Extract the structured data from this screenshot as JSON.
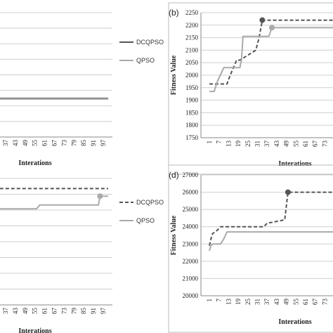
{
  "chart_data": [
    {
      "panel": "",
      "type": "line",
      "xlabel": "Interations",
      "ylabel": "",
      "x_tick_labels": [
        "37",
        "43",
        "49",
        "55",
        "61",
        "67",
        "73",
        "79",
        "85",
        "91",
        "97"
      ],
      "x_ticks": [
        37,
        43,
        49,
        55,
        61,
        67,
        73,
        79,
        85,
        91,
        97
      ],
      "y_tick_labels": [],
      "grid": "horizontal",
      "legend": {
        "placement": "right",
        "entries": [
          "DCQPSO",
          "QPSO"
        ]
      },
      "series": [
        {
          "name": "DCQPSO",
          "style": "solid",
          "color": "#555555",
          "x": [
            30,
            100
          ],
          "y": [
            0.31,
            0.31
          ]
        },
        {
          "name": "QPSO",
          "style": "solid",
          "color": "#aaaaaa",
          "x": [
            30,
            100
          ],
          "y": [
            0.305,
            0.305
          ]
        }
      ]
    },
    {
      "panel": "(b)",
      "type": "line",
      "xlabel": "Interations",
      "ylabel": "Fitness Value",
      "ylim": [
        1750,
        2250
      ],
      "y_ticks": [
        1750,
        1800,
        1850,
        1900,
        1950,
        2000,
        2050,
        2100,
        2150,
        2200,
        2250
      ],
      "y_tick_labels": [
        "1750",
        "1800",
        "1850",
        "1900",
        "1950",
        "2000",
        "2050",
        "2100",
        "2150",
        "2200",
        "2250"
      ],
      "x_tick_labels": [
        "1",
        "7",
        "13",
        "19",
        "25",
        "31",
        "37",
        "43",
        "49",
        "55",
        "61",
        "67",
        "73"
      ],
      "x_ticks": [
        1,
        7,
        13,
        19,
        25,
        31,
        37,
        43,
        49,
        55,
        61,
        67,
        73
      ],
      "grid": "horizontal",
      "series": [
        {
          "name": "DCQPSO",
          "style": "dashed",
          "color": "#555555",
          "x": [
            1,
            12,
            14,
            16,
            18,
            20,
            30,
            32,
            34,
            100
          ],
          "y": [
            1965,
            1965,
            2000,
            2030,
            2060,
            2060,
            2100,
            2150,
            2220,
            2220
          ],
          "marker_index": 8
        },
        {
          "name": "QPSO",
          "style": "solid",
          "color": "#aaaaaa",
          "x": [
            1,
            4,
            6,
            10,
            12,
            20,
            21,
            22,
            30,
            38,
            40,
            100
          ],
          "y": [
            1935,
            1935,
            1975,
            2030,
            2030,
            2030,
            2060,
            2155,
            2155,
            2155,
            2190,
            2190
          ],
          "marker_index": 10
        }
      ]
    },
    {
      "panel": "",
      "type": "line",
      "xlabel": "Interations",
      "ylabel": "",
      "x_tick_labels": [
        "37",
        "43",
        "49",
        "55",
        "61",
        "67",
        "73",
        "79",
        "85",
        "91",
        "97"
      ],
      "x_ticks": [
        37,
        43,
        49,
        55,
        61,
        67,
        73,
        79,
        85,
        91,
        97
      ],
      "y_tick_labels": [],
      "grid": "horizontal",
      "legend": {
        "placement": "right",
        "entries": [
          "DCQPSO",
          "QPSO"
        ]
      },
      "series": [
        {
          "name": "DCQPSO",
          "style": "dashed",
          "color": "#555555",
          "x": [
            30,
            100
          ],
          "y": [
            0.92,
            0.92
          ],
          "marker_index": 0
        },
        {
          "name": "QPSO",
          "style": "solid",
          "color": "#aaaaaa",
          "x": [
            30,
            56,
            58,
            94,
            95,
            100
          ],
          "y": [
            0.76,
            0.76,
            0.79,
            0.79,
            0.86,
            0.86
          ],
          "marker_index": 4
        }
      ]
    },
    {
      "panel": "(d)",
      "type": "line",
      "xlabel": "Interations",
      "ylabel": "Fitness Value",
      "ylim": [
        20000,
        27000
      ],
      "y_ticks": [
        20000,
        21000,
        22000,
        23000,
        24000,
        25000,
        26000,
        27000
      ],
      "y_tick_labels": [
        "20000",
        "21000",
        "22000",
        "23000",
        "24000",
        "25000",
        "26000",
        "27000"
      ],
      "x_tick_labels": [
        "1",
        "7",
        "13",
        "19",
        "25",
        "31",
        "37",
        "43",
        "49",
        "55",
        "61",
        "67",
        "73"
      ],
      "x_ticks": [
        1,
        7,
        13,
        19,
        25,
        31,
        37,
        43,
        49,
        55,
        61,
        67,
        73
      ],
      "grid": "horizontal",
      "series": [
        {
          "name": "DCQPSO",
          "style": "dashed",
          "color": "#555555",
          "x": [
            1,
            2,
            3,
            6,
            8,
            35,
            37,
            48,
            50,
            100
          ],
          "y": [
            22900,
            23300,
            23600,
            23800,
            24000,
            24000,
            24200,
            24400,
            26000,
            26000
          ],
          "marker_index": 8
        },
        {
          "name": "QPSO",
          "style": "solid",
          "color": "#aaaaaa",
          "x": [
            1,
            2,
            3,
            8,
            10,
            12,
            100
          ],
          "y": [
            22600,
            22900,
            23000,
            23000,
            23300,
            23700,
            23700
          ]
        }
      ]
    }
  ]
}
